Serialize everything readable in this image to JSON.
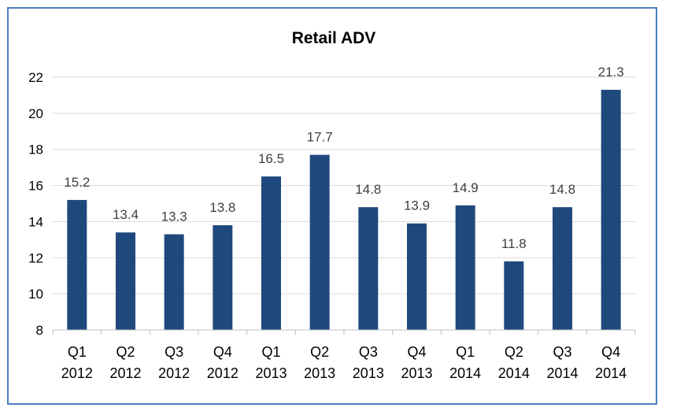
{
  "chart_data": {
    "type": "bar",
    "title": "Retail ADV",
    "xlabel": "",
    "ylabel": "",
    "categories": [
      [
        "Q1",
        "2012"
      ],
      [
        "Q2",
        "2012"
      ],
      [
        "Q3",
        "2012"
      ],
      [
        "Q4",
        "2012"
      ],
      [
        "Q1",
        "2013"
      ],
      [
        "Q2",
        "2013"
      ],
      [
        "Q3",
        "2013"
      ],
      [
        "Q4",
        "2013"
      ],
      [
        "Q1",
        "2014"
      ],
      [
        "Q2",
        "2014"
      ],
      [
        "Q3",
        "2014"
      ],
      [
        "Q4",
        "2014"
      ]
    ],
    "values": [
      15.2,
      13.4,
      13.3,
      13.8,
      16.5,
      17.7,
      14.8,
      13.9,
      14.9,
      11.8,
      14.8,
      21.3
    ],
    "value_labels": [
      "15.2",
      "13.4",
      "13.3",
      "13.8",
      "16.5",
      "17.7",
      "14.8",
      "13.9",
      "14.9",
      "11.8",
      "14.8",
      "21.3"
    ],
    "ylim": [
      8,
      22
    ],
    "yticks": [
      "8",
      "10",
      "12",
      "14",
      "16",
      "18",
      "20",
      "22"
    ],
    "grid": true,
    "legend": "none",
    "colors": {
      "bar": "#1f497d",
      "grid": "#d9d9d9",
      "axis": "#bfbfbf",
      "frame": "#4a7ebb",
      "data_label": "#404040"
    }
  }
}
